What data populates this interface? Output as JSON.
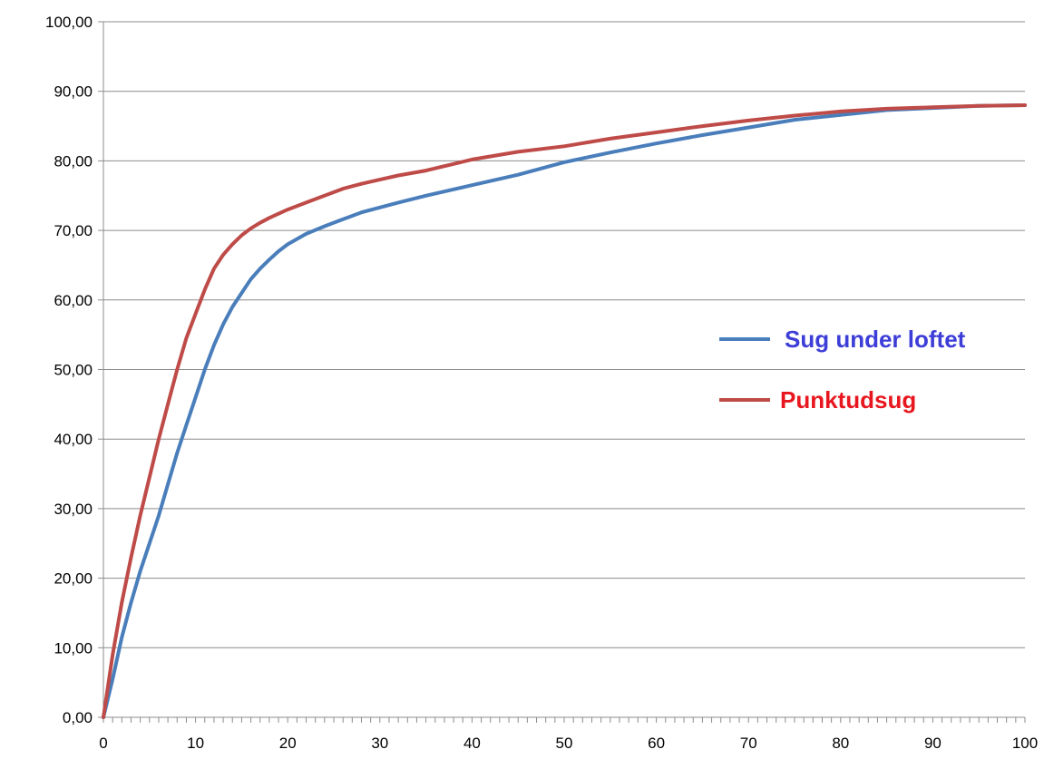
{
  "chart_data": {
    "type": "line",
    "title": "",
    "xlabel": "",
    "ylabel": "",
    "xlim": [
      0,
      100
    ],
    "ylim": [
      0,
      100
    ],
    "x_ticks": [
      0,
      10,
      20,
      30,
      40,
      50,
      60,
      70,
      80,
      90,
      100
    ],
    "x_tick_labels": [
      "0",
      "10",
      "20",
      "30",
      "40",
      "50",
      "60",
      "70",
      "80",
      "90",
      "100"
    ],
    "y_ticks": [
      0,
      10,
      20,
      30,
      40,
      50,
      60,
      70,
      80,
      90,
      100
    ],
    "y_tick_labels": [
      "0,00",
      "10,00",
      "20,00",
      "30,00",
      "40,00",
      "50,00",
      "60,00",
      "70,00",
      "80,00",
      "90,00",
      "100,00"
    ],
    "grid": "horizontal",
    "legend_position": "right",
    "x": [
      0,
      1,
      2,
      3,
      4,
      5,
      6,
      7,
      8,
      9,
      10,
      11,
      12,
      13,
      14,
      15,
      16,
      17,
      18,
      19,
      20,
      22,
      24,
      26,
      28,
      30,
      32,
      35,
      40,
      45,
      50,
      55,
      60,
      65,
      70,
      75,
      80,
      85,
      90,
      95,
      100
    ],
    "series": [
      {
        "name": "Sug under loftet",
        "color": "#4a7ebb",
        "values": [
          0,
          5.5,
          11.5,
          16.5,
          21,
          25,
          29,
          33.5,
          38,
          42,
          46,
          50,
          53.5,
          56.5,
          59,
          61,
          63,
          64.5,
          65.8,
          67,
          68,
          69.5,
          70.6,
          71.6,
          72.6,
          73.3,
          74,
          75,
          76.5,
          78,
          79.8,
          81.2,
          82.5,
          83.7,
          84.8,
          85.9,
          86.6,
          87.3,
          87.6,
          87.9,
          88
        ]
      },
      {
        "name": "Punktudsug",
        "color": "#be4b48",
        "values": [
          0,
          9,
          16.5,
          23,
          29,
          34.5,
          40,
          45,
          50,
          54.5,
          58,
          61.5,
          64.5,
          66.5,
          68,
          69.3,
          70.3,
          71.1,
          71.8,
          72.4,
          73,
          74,
          75,
          76,
          76.7,
          77.3,
          77.9,
          78.6,
          80.2,
          81.3,
          82.1,
          83.2,
          84.1,
          85,
          85.8,
          86.5,
          87.1,
          87.5,
          87.7,
          87.9,
          88
        ]
      }
    ]
  },
  "legend": [
    {
      "label": "Sug under loftet",
      "line_color": "#4a7ebb",
      "text_color": "#3d3dd8"
    },
    {
      "label": "Punktudsug",
      "line_color": "#be4b48",
      "text_color": "#e8161e"
    }
  ]
}
